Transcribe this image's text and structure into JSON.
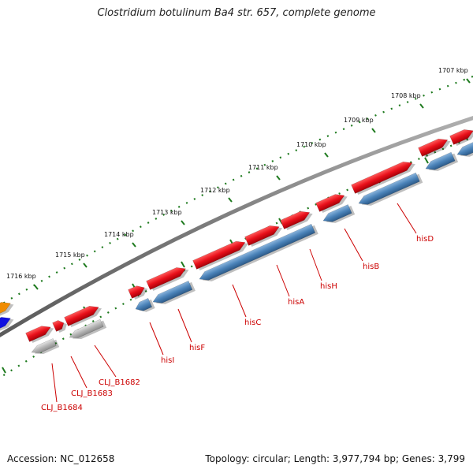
{
  "title": "Clostridium botulinum Ba4 str. 657, complete genome",
  "footer": {
    "accession": "Accession: NC_012658",
    "info": "Topology: circular; Length: 3,977,794 bp; Genes: 3,799"
  },
  "colors": {
    "forward_gene": "#e8101a",
    "reverse_gene": "#4a82b8",
    "pseudo_gene": "#b5b5b5",
    "backbone": "#8a8a8a",
    "tick": "#1e7a1e",
    "label": "#cc0000",
    "partial_orange": "#f08c00",
    "partial_blue": "#1010e0"
  },
  "ticks": [
    {
      "label": "1707 kbp"
    },
    {
      "label": "1708 kbp"
    },
    {
      "label": "1709 kbp"
    },
    {
      "label": "1710 kbp"
    },
    {
      "label": "1711 kbp"
    },
    {
      "label": "1712 kbp"
    },
    {
      "label": "1713 kbp"
    },
    {
      "label": "1714 kbp"
    },
    {
      "label": "1715 kbp"
    },
    {
      "label": "1716 kbp"
    }
  ],
  "gene_labels": [
    {
      "name": "hisD"
    },
    {
      "name": "hisB"
    },
    {
      "name": "hisH"
    },
    {
      "name": "hisA"
    },
    {
      "name": "hisC"
    },
    {
      "name": "hisF"
    },
    {
      "name": "hisI"
    },
    {
      "name": "CLJ_B1682"
    },
    {
      "name": "CLJ_B1683"
    },
    {
      "name": "CLJ_B1684"
    }
  ]
}
